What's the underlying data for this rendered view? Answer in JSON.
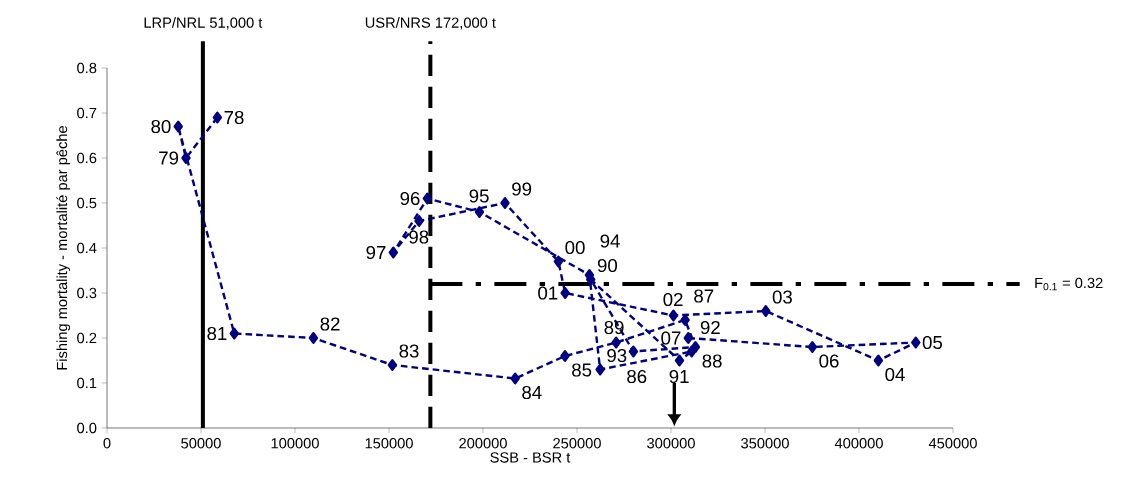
{
  "chart_data": {
    "type": "line",
    "xlabel": "SSB - BSR t",
    "ylabel": "Fishing mortality - mortalité par pêche",
    "xlim": [
      0,
      450000
    ],
    "ylim": [
      0,
      0.8
    ],
    "xticks": [
      0,
      50000,
      100000,
      150000,
      200000,
      250000,
      300000,
      350000,
      400000,
      450000
    ],
    "yticks": [
      {
        "value": 0,
        "label": "0.0"
      },
      {
        "value": 0.1,
        "label": "0.1"
      },
      {
        "value": 0.2,
        "label": "0.2"
      },
      {
        "value": 0.3,
        "label": "0.3"
      },
      {
        "value": 0.4,
        "label": "0.4"
      },
      {
        "value": 0.5,
        "label": "0.5"
      },
      {
        "value": 0.6,
        "label": "0.6"
      },
      {
        "value": 0.7,
        "label": "0.7"
      },
      {
        "value": 0.8,
        "label": "0.8"
      }
    ],
    "grid": false,
    "marker": "diamond",
    "line_style": "dashed",
    "series": [
      {
        "color": "#000080",
        "x": [
          58700,
          42000,
          37900,
          67700,
          109800,
          151800,
          217100,
          243600,
          270800,
          307500,
          313000,
          280000,
          257300,
          304500,
          311000,
          262300,
          256600,
          198100,
          170400,
          152300,
          166000,
          211700,
          240100,
          243700,
          301300,
          350400,
          410300,
          430200,
          375200,
          309200
        ],
        "values": [
          0.69,
          0.6,
          0.67,
          0.21,
          0.2,
          0.14,
          0.11,
          0.16,
          0.19,
          0.24,
          0.18,
          0.17,
          0.33,
          0.15,
          0.17,
          0.13,
          0.34,
          0.48,
          0.51,
          0.39,
          0.46,
          0.5,
          0.37,
          0.3,
          0.25,
          0.26,
          0.15,
          0.19,
          0.18,
          0.2
        ]
      }
    ],
    "ref_lines": [
      {
        "axis": "x",
        "value": 51000,
        "label": "LRP/NRL 51,000 t",
        "line_style": "solid",
        "color": "#000000"
      },
      {
        "axis": "x",
        "value": 172000,
        "label": "USR/NRS 172,000 t",
        "line_style": "dashed",
        "color": "#000000"
      },
      {
        "axis": "y",
        "value": 0.32,
        "label": "F$_{0.1}$ = 0.32",
        "line_style": "dashdot",
        "color": "#000000"
      }
    ],
    "annotations": [
      {
        "text": "78",
        "x": 58700,
        "y": 0.69
      },
      {
        "text": "79",
        "x": 42000,
        "y": 0.6
      },
      {
        "text": "80",
        "x": 37900,
        "y": 0.67
      },
      {
        "text": "81",
        "x": 67700,
        "y": 0.21
      },
      {
        "text": "82",
        "x": 109800,
        "y": 0.2
      },
      {
        "text": "83",
        "x": 151800,
        "y": 0.14
      },
      {
        "text": "84",
        "x": 217100,
        "y": 0.11
      },
      {
        "text": "85",
        "x": 243600,
        "y": 0.16
      },
      {
        "text": "86",
        "x": 270800,
        "y": 0.19
      },
      {
        "text": "87",
        "x": 307500,
        "y": 0.24
      },
      {
        "text": "88",
        "x": 313000,
        "y": 0.18
      },
      {
        "text": "89",
        "x": 280000,
        "y": 0.17
      },
      {
        "text": "90",
        "x": 257300,
        "y": 0.33
      },
      {
        "text": "91",
        "x": 304500,
        "y": 0.15
      },
      {
        "text": "92",
        "x": 311000,
        "y": 0.17
      },
      {
        "text": "93",
        "x": 262300,
        "y": 0.13
      },
      {
        "text": "94",
        "x": 256600,
        "y": 0.34
      },
      {
        "text": "95",
        "x": 198100,
        "y": 0.48
      },
      {
        "text": "96",
        "x": 170400,
        "y": 0.51
      },
      {
        "text": "97",
        "x": 152300,
        "y": 0.39
      },
      {
        "text": "98",
        "x": 166000,
        "y": 0.46
      },
      {
        "text": "99",
        "x": 211700,
        "y": 0.5
      },
      {
        "text": "00",
        "x": 240100,
        "y": 0.37
      },
      {
        "text": "01",
        "x": 243700,
        "y": 0.3
      },
      {
        "text": "02",
        "x": 301300,
        "y": 0.25
      },
      {
        "text": "03",
        "x": 350400,
        "y": 0.26
      },
      {
        "text": "04",
        "x": 410300,
        "y": 0.15
      },
      {
        "text": "05",
        "x": 430200,
        "y": 0.19
      },
      {
        "text": "06",
        "x": 375200,
        "y": 0.18
      },
      {
        "text": "07",
        "x": 309200,
        "y": 0.2
      }
    ]
  }
}
